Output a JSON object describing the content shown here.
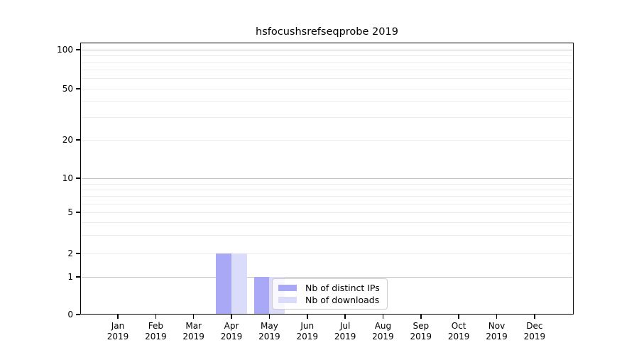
{
  "chart_data": {
    "type": "bar",
    "title": "hsfocushsrefseqprobe 2019",
    "categories": [
      "Jan 2019",
      "Feb 2019",
      "Mar 2019",
      "Apr 2019",
      "May 2019",
      "Jun 2019",
      "Jul 2019",
      "Aug 2019",
      "Sep 2019",
      "Oct 2019",
      "Nov 2019",
      "Dec 2019"
    ],
    "series": [
      {
        "name": "Nb of distinct IPs",
        "color": "#a8a8f6",
        "values": [
          0,
          0,
          0,
          2,
          1,
          0,
          0,
          0,
          0,
          0,
          0,
          0
        ]
      },
      {
        "name": "Nb of downloads",
        "color": "#dbdbfa",
        "values": [
          0,
          0,
          0,
          2,
          1,
          0,
          0,
          0,
          0,
          0,
          0,
          0
        ]
      }
    ],
    "xlabel": "",
    "ylabel": "",
    "yscale": "symlog",
    "ytick_labels": [
      "0",
      "1",
      "2",
      "5",
      "10",
      "20",
      "50",
      "100"
    ],
    "ytick_values": [
      0,
      1,
      2,
      5,
      10,
      20,
      50,
      100
    ],
    "minor_grid_values": [
      2,
      3,
      4,
      5,
      6,
      7,
      8,
      9,
      20,
      30,
      40,
      50,
      60,
      70,
      80,
      90
    ],
    "major_grid_values": [
      1,
      10,
      100
    ],
    "ylim": [
      0,
      113
    ],
    "grid": true,
    "legend_position": "inside lower-center"
  },
  "legend": {
    "items": [
      {
        "label": "Nb of distinct IPs",
        "color": "#a8a8f6"
      },
      {
        "label": "Nb of downloads",
        "color": "#dbdbfa"
      }
    ]
  },
  "colors": {
    "major_grid": "#c4c4c4",
    "minor_grid": "#ececec",
    "axis": "#000000",
    "background": "#ffffff"
  }
}
